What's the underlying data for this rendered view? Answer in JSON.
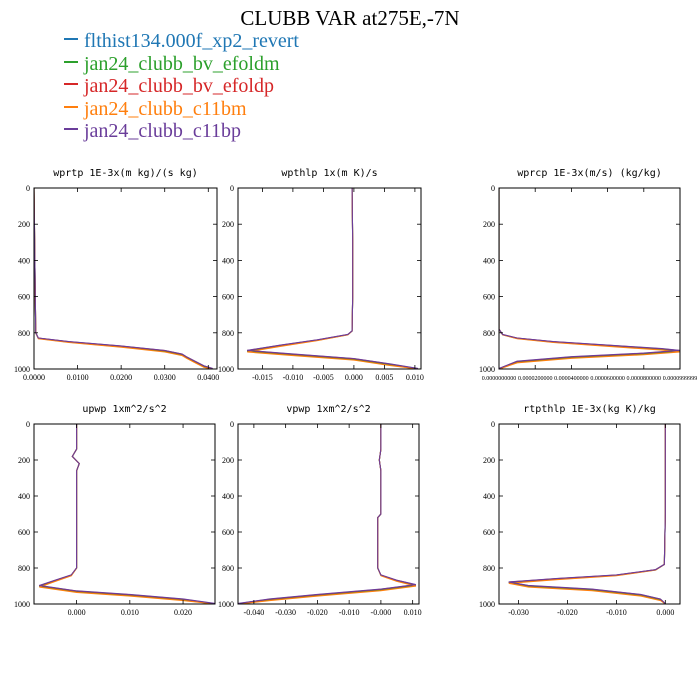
{
  "title": "CLUBB VAR at275E,-7N",
  "legend": [
    {
      "name": "flthist134.000f_xp2_revert",
      "color": "#1f77b4"
    },
    {
      "name": "jan24_clubb_bv_efoldm",
      "color": "#2ca02c"
    },
    {
      "name": "jan24_clubb_bv_efoldp",
      "color": "#d62728"
    },
    {
      "name": "jan24_clubb_c11bm",
      "color": "#ff7f0e"
    },
    {
      "name": "jan24_clubb_c11bp",
      "color": "#6a3d9a"
    }
  ],
  "chart_data": [
    {
      "type": "line",
      "title": "wprtp  1E-3x(m kg)/(s kg)",
      "xlim": [
        0.0,
        0.042
      ],
      "ylim": [
        1000,
        0
      ],
      "xticks": [
        0.0,
        0.01,
        0.02,
        0.03,
        0.04
      ],
      "xtick_labels": [
        "0.0000",
        "0.0100",
        "0.0200",
        "0.0300",
        "0.0400"
      ],
      "yticks": [
        0,
        200,
        400,
        600,
        800,
        1000
      ],
      "ytick_labels": [
        "0",
        "200",
        "400",
        "600",
        "800",
        "1000"
      ],
      "profile": [
        [
          0.0,
          0
        ],
        [
          0.0002,
          400
        ],
        [
          0.0004,
          800
        ],
        [
          0.001,
          830
        ],
        [
          0.008,
          850
        ],
        [
          0.02,
          875
        ],
        [
          0.03,
          900
        ],
        [
          0.034,
          920
        ],
        [
          0.035,
          935
        ],
        [
          0.037,
          960
        ],
        [
          0.039,
          985
        ],
        [
          0.041,
          1000
        ]
      ]
    },
    {
      "type": "line",
      "title": "wpthlp  1x(m K)/s",
      "xlim": [
        -0.019,
        0.011
      ],
      "ylim": [
        1000,
        0
      ],
      "xticks": [
        -0.015,
        -0.01,
        -0.005,
        0.0,
        0.005,
        0.01
      ],
      "xtick_labels": [
        "-0.015",
        "-0.010",
        "-0.005",
        "0.000",
        "0.005",
        "0.010"
      ],
      "yticks": [
        0,
        200,
        400,
        600,
        800,
        1000
      ],
      "ytick_labels": [
        "0",
        "200",
        "400",
        "600",
        "800",
        "1000"
      ],
      "profile": [
        [
          -0.0003,
          0
        ],
        [
          -0.0002,
          300
        ],
        [
          -0.0002,
          600
        ],
        [
          -0.0003,
          790
        ],
        [
          -0.001,
          810
        ],
        [
          -0.006,
          840
        ],
        [
          -0.012,
          870
        ],
        [
          -0.0175,
          900
        ],
        [
          -0.01,
          920
        ],
        [
          0.0,
          945
        ],
        [
          0.006,
          975
        ],
        [
          0.0105,
          1000
        ]
      ]
    },
    {
      "type": "line",
      "title": "wprcp  1E-3x(m/s) (kg/kg)",
      "xlim": [
        0.0,
        0.0001
      ],
      "ylim": [
        1000,
        0
      ],
      "xticks": [
        0.0,
        2e-05,
        4e-05,
        6e-05,
        8e-05,
        0.0001
      ],
      "xtick_labels": [
        "0.0000000000",
        "0.0000200000",
        "0.0000400000",
        "0.0000600000",
        "0.0000800000",
        "0.0000999999"
      ],
      "yticks": [
        0,
        200,
        400,
        600,
        800,
        1000
      ],
      "ytick_labels": [
        "0",
        "200",
        "400",
        "600",
        "800",
        "1000"
      ],
      "profile": [
        [
          0.0,
          0
        ],
        [
          0.0,
          780
        ],
        [
          2e-06,
          810
        ],
        [
          1e-05,
          830
        ],
        [
          3e-05,
          850
        ],
        [
          6e-05,
          870
        ],
        [
          9e-05,
          890
        ],
        [
          0.0001,
          900
        ],
        [
          8e-05,
          915
        ],
        [
          4e-05,
          935
        ],
        [
          1e-05,
          960
        ],
        [
          0.0,
          1000
        ]
      ]
    },
    {
      "type": "line",
      "title": "upwp  1xm^2/s^2",
      "xlim": [
        -0.008,
        0.026
      ],
      "ylim": [
        1000,
        0
      ],
      "xticks": [
        0.0,
        0.01,
        0.02
      ],
      "xtick_labels": [
        "0.000",
        "0.010",
        "0.020"
      ],
      "yticks": [
        0,
        200,
        400,
        600,
        800,
        1000
      ],
      "ytick_labels": [
        "0",
        "200",
        "400",
        "600",
        "800",
        "1000"
      ],
      "profile": [
        [
          0.0,
          0
        ],
        [
          0.0,
          140
        ],
        [
          -0.0008,
          180
        ],
        [
          0.0005,
          220
        ],
        [
          0.0,
          260
        ],
        [
          0.0,
          600
        ],
        [
          0.0,
          800
        ],
        [
          -0.001,
          840
        ],
        [
          -0.004,
          870
        ],
        [
          -0.007,
          900
        ],
        [
          0.0,
          930
        ],
        [
          0.01,
          950
        ],
        [
          0.02,
          975
        ],
        [
          0.026,
          1000
        ]
      ]
    },
    {
      "type": "line",
      "title": "vpwp  1xm^2/s^2",
      "xlim": [
        -0.045,
        0.012
      ],
      "ylim": [
        1000,
        0
      ],
      "xticks": [
        -0.04,
        -0.03,
        -0.02,
        -0.01,
        0.0,
        0.01
      ],
      "xtick_labels": [
        "-0.040",
        "-0.030",
        "-0.020",
        "-0.010",
        "-0.000",
        "0.010"
      ],
      "yticks": [
        0,
        200,
        400,
        600,
        800,
        1000
      ],
      "ytick_labels": [
        "0",
        "200",
        "400",
        "600",
        "800",
        "1000"
      ],
      "profile": [
        [
          0.0,
          0
        ],
        [
          0.0,
          140
        ],
        [
          -0.0005,
          200
        ],
        [
          0.0,
          260
        ],
        [
          0.0,
          500
        ],
        [
          -0.001,
          520
        ],
        [
          -0.001,
          800
        ],
        [
          0.0,
          840
        ],
        [
          0.005,
          870
        ],
        [
          0.011,
          895
        ],
        [
          0.0,
          920
        ],
        [
          -0.02,
          950
        ],
        [
          -0.035,
          975
        ],
        [
          -0.045,
          1000
        ]
      ]
    },
    {
      "type": "line",
      "title": "rtpthlp  1E-3x(kg K)/kg",
      "xlim": [
        -0.034,
        0.003
      ],
      "ylim": [
        1000,
        0
      ],
      "xticks": [
        -0.03,
        -0.02,
        -0.01,
        0.0
      ],
      "xtick_labels": [
        "-0.030",
        "-0.020",
        "-0.010",
        "0.000"
      ],
      "yticks": [
        0,
        200,
        400,
        600,
        800,
        1000
      ],
      "ytick_labels": [
        "0",
        "200",
        "400",
        "600",
        "800",
        "1000"
      ],
      "profile": [
        [
          0.0,
          0
        ],
        [
          0.0,
          500
        ],
        [
          -0.0002,
          780
        ],
        [
          -0.002,
          810
        ],
        [
          -0.01,
          840
        ],
        [
          -0.022,
          860
        ],
        [
          -0.032,
          880
        ],
        [
          -0.028,
          900
        ],
        [
          -0.015,
          920
        ],
        [
          -0.005,
          950
        ],
        [
          -0.001,
          975
        ],
        [
          0.0,
          1000
        ]
      ]
    }
  ]
}
